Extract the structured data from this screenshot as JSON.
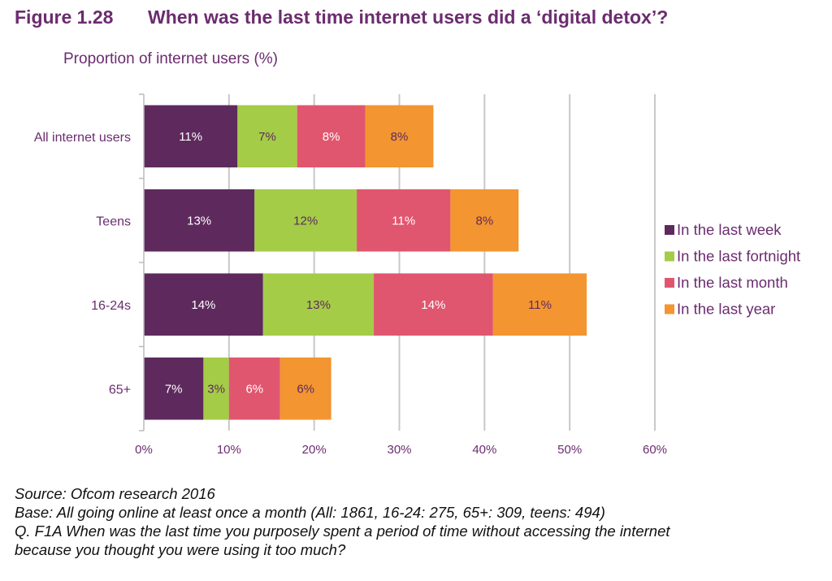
{
  "figure_label": "Figure 1.28",
  "chart_data": {
    "type": "bar",
    "orientation": "horizontal",
    "stacked": true,
    "title": "When was the last time internet users did a ‘digital detox’?",
    "subtitle": "Proportion of internet users (%)",
    "categories": [
      "All internet users",
      "Teens",
      "16-24s",
      "65+"
    ],
    "series": [
      {
        "name": "In the last week",
        "color": "#5e2a5e",
        "label_color": "#ffffff",
        "values": [
          11,
          13,
          14,
          7
        ]
      },
      {
        "name": "In the last fortnight",
        "color": "#a4cc47",
        "label_color": "#5e2a5e",
        "values": [
          7,
          12,
          13,
          3
        ]
      },
      {
        "name": "In the last month",
        "color": "#e0566e",
        "label_color": "#ffffff",
        "values": [
          8,
          11,
          14,
          6
        ]
      },
      {
        "name": "In the last year",
        "color": "#f39530",
        "label_color": "#5e2a5e",
        "values": [
          8,
          8,
          11,
          6
        ]
      }
    ],
    "xlim": [
      0,
      60
    ],
    "xticks": [
      0,
      10,
      20,
      30,
      40,
      50,
      60
    ],
    "tick_suffix": "%",
    "grid": true,
    "legend_position": "right"
  },
  "footnotes": {
    "source": "Source: Ofcom research 2016",
    "base": "Base: All going online at least once a month (All: 1861, 16-24: 275, 65+: 309, teens: 494)",
    "question_line1": "Q. F1A When was the last time you purposely spent a period of time without accessing the internet",
    "question_line2": "because you thought you were using it too much?"
  }
}
